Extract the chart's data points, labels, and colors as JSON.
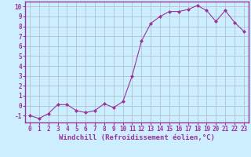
{
  "x": [
    0,
    1,
    2,
    3,
    4,
    5,
    6,
    7,
    8,
    9,
    10,
    11,
    12,
    13,
    14,
    15,
    16,
    17,
    18,
    19,
    20,
    21,
    22,
    23
  ],
  "y": [
    -1.0,
    -1.3,
    -0.8,
    0.1,
    0.1,
    -0.5,
    -0.7,
    -0.5,
    0.2,
    -0.2,
    0.4,
    3.0,
    6.5,
    8.3,
    9.0,
    9.5,
    9.5,
    9.7,
    10.1,
    9.6,
    8.5,
    9.6,
    8.4,
    7.5
  ],
  "line_color": "#993399",
  "marker": "D",
  "marker_size": 2.0,
  "bg_color": "#cceeff",
  "grid_color": "#aabbcc",
  "xlabel": "Windchill (Refroidissement éolien,°C)",
  "xlabel_color": "#993399",
  "xlim": [
    -0.5,
    23.5
  ],
  "ylim": [
    -1.7,
    10.5
  ],
  "yticks": [
    -1,
    0,
    1,
    2,
    3,
    4,
    5,
    6,
    7,
    8,
    9,
    10
  ],
  "xticks": [
    0,
    1,
    2,
    3,
    4,
    5,
    6,
    7,
    8,
    9,
    10,
    11,
    12,
    13,
    14,
    15,
    16,
    17,
    18,
    19,
    20,
    21,
    22,
    23
  ],
  "tick_fontsize": 5.5,
  "xlabel_fontsize": 6.5,
  "spine_color": "#993399",
  "linewidth": 0.8
}
